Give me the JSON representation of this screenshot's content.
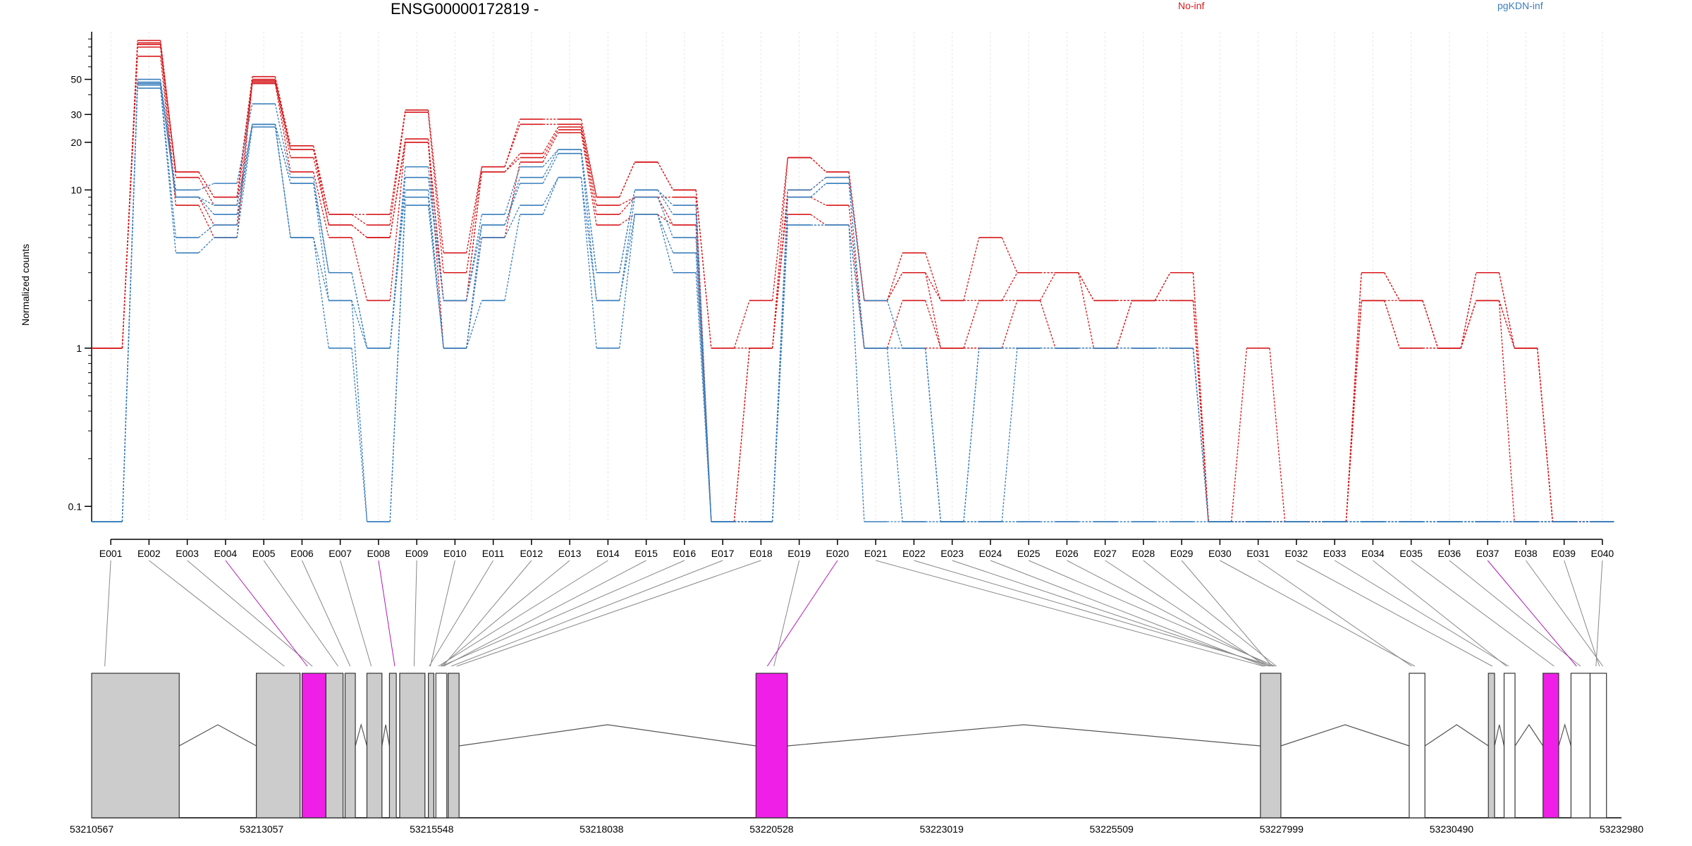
{
  "chart_data": {
    "type": "line",
    "title": "ENSG00000172819 -",
    "ylabel": "Normalized counts",
    "yscale": "log",
    "yticks": [
      0.1,
      1,
      10,
      20,
      30,
      50
    ],
    "ylim": [
      0.08,
      100
    ],
    "legend": [
      "No-inf",
      "pgKDN-inf"
    ],
    "colors": {
      "No-inf": "#d7191c",
      "pgKDN-inf": "#3a7fbd"
    },
    "categories": [
      "E001",
      "E002",
      "E003",
      "E004",
      "E005",
      "E006",
      "E007",
      "E008",
      "E009",
      "E010",
      "E011",
      "E012",
      "E013",
      "E014",
      "E015",
      "E016",
      "E017",
      "E018",
      "E019",
      "E020",
      "E021",
      "E022",
      "E023",
      "E024",
      "E025",
      "E026",
      "E027",
      "E028",
      "E029",
      "E030",
      "E031",
      "E032",
      "E033",
      "E034",
      "E035",
      "E036",
      "E037",
      "E038",
      "E039",
      "E040"
    ],
    "series": [
      {
        "group": "No-inf",
        "values": [
          1,
          88,
          13,
          9,
          52,
          19,
          7,
          7,
          32,
          4,
          14,
          28,
          28,
          9,
          15,
          10,
          1,
          1,
          16,
          13,
          2,
          4,
          2,
          5,
          3,
          3,
          1,
          2,
          3,
          0.08,
          1,
          0.08,
          0.08,
          3,
          2,
          1,
          3,
          1,
          0.08,
          0.08
        ]
      },
      {
        "group": "No-inf",
        "values": [
          1,
          85,
          13,
          9,
          50,
          18,
          7,
          6,
          31,
          3,
          14,
          26,
          26,
          9,
          15,
          10,
          1,
          2,
          16,
          13,
          2,
          3,
          2,
          2,
          3,
          3,
          2,
          2,
          3,
          0.08,
          0.08,
          0.08,
          0.08,
          3,
          2,
          1,
          3,
          1,
          0.08,
          0.08
        ]
      },
      {
        "group": "No-inf",
        "values": [
          1,
          83,
          12,
          8,
          49,
          18,
          6,
          5,
          21,
          2,
          13,
          17,
          25,
          8,
          9,
          9,
          0.08,
          1,
          10,
          12,
          2,
          3,
          1,
          2,
          2,
          3,
          2,
          2,
          2,
          0.08,
          0.08,
          0.08,
          0.08,
          2,
          2,
          1,
          2,
          1,
          0.08,
          0.08
        ]
      },
      {
        "group": "No-inf",
        "values": [
          1,
          80,
          9,
          6,
          48,
          16,
          6,
          5,
          20,
          2,
          13,
          16,
          24,
          7,
          9,
          6,
          0.08,
          1,
          9,
          8,
          1,
          2,
          1,
          1,
          2,
          1,
          1,
          2,
          2,
          0.08,
          0.08,
          0.08,
          0.08,
          2,
          1,
          1,
          2,
          1,
          0.08,
          0.08
        ]
      },
      {
        "group": "No-inf",
        "values": [
          1,
          70,
          8,
          5,
          47,
          13,
          5,
          2,
          20,
          1,
          5,
          15,
          23,
          6,
          7,
          6,
          0.08,
          0.08,
          7,
          6,
          1,
          1,
          1,
          1,
          1,
          1,
          1,
          1,
          1,
          0.08,
          0.08,
          0.08,
          0.08,
          2,
          1,
          1,
          2,
          0.08,
          0.08,
          0.08
        ]
      },
      {
        "group": "pgKDN-inf",
        "values": [
          0.08,
          50,
          10,
          11,
          35,
          12,
          3,
          1,
          14,
          2,
          7,
          14,
          18,
          3,
          10,
          8,
          0.08,
          0.08,
          10,
          12,
          2,
          1,
          0.08,
          1,
          1,
          1,
          1,
          1,
          1,
          0.08,
          0.08,
          0.08,
          0.08,
          0.08,
          0.08,
          0.08,
          0.08,
          0.08,
          0.08,
          0.08
        ]
      },
      {
        "group": "pgKDN-inf",
        "values": [
          0.08,
          48,
          9,
          8,
          26,
          11,
          3,
          1,
          12,
          2,
          6,
          12,
          18,
          3,
          10,
          7,
          0.08,
          0.08,
          9,
          11,
          1,
          1,
          0.08,
          1,
          1,
          1,
          1,
          1,
          1,
          0.08,
          0.08,
          0.08,
          0.08,
          0.08,
          0.08,
          0.08,
          0.08,
          0.08,
          0.08,
          0.08
        ]
      },
      {
        "group": "pgKDN-inf",
        "values": [
          0.08,
          47,
          9,
          7,
          26,
          11,
          2,
          1,
          10,
          1,
          6,
          11,
          17,
          2,
          9,
          5,
          0.08,
          0.08,
          9,
          11,
          1,
          1,
          0.08,
          0.08,
          1,
          1,
          1,
          1,
          1,
          0.08,
          0.08,
          0.08,
          0.08,
          0.08,
          0.08,
          0.08,
          0.08,
          0.08,
          0.08,
          0.08
        ]
      },
      {
        "group": "pgKDN-inf",
        "values": [
          0.08,
          46,
          5,
          6,
          26,
          5,
          2,
          0.08,
          9,
          1,
          5,
          8,
          12,
          2,
          7,
          4,
          0.08,
          0.08,
          6,
          6,
          1,
          0.08,
          0.08,
          0.08,
          0.08,
          0.08,
          0.08,
          0.08,
          0.08,
          0.08,
          0.08,
          0.08,
          0.08,
          0.08,
          0.08,
          0.08,
          0.08,
          0.08,
          0.08,
          0.08
        ]
      },
      {
        "group": "pgKDN-inf",
        "values": [
          0.08,
          44,
          4,
          5,
          25,
          5,
          1,
          0.08,
          8,
          1,
          2,
          7,
          12,
          1,
          7,
          3,
          0.08,
          0.08,
          6,
          6,
          0.08,
          0.08,
          0.08,
          0.08,
          0.08,
          0.08,
          0.08,
          0.08,
          0.08,
          0.08,
          0.08,
          0.08,
          0.08,
          0.08,
          0.08,
          0.08,
          0.08,
          0.08,
          0.08,
          0.08
        ]
      }
    ],
    "gene_model": {
      "coordinate_ticks": [
        53210567,
        53213057,
        53215548,
        53218038,
        53220528,
        53223019,
        53225509,
        53227999,
        53230490,
        53232980
      ],
      "coordinate_range": [
        53210567,
        53232980
      ],
      "exons": [
        {
          "start": 53210567,
          "end": 53211850,
          "fill": "gray"
        },
        {
          "start": 53212980,
          "end": 53213620,
          "fill": "gray"
        },
        {
          "start": 53213650,
          "end": 53214000,
          "fill": "magenta"
        },
        {
          "start": 53214000,
          "end": 53214250,
          "fill": "gray"
        },
        {
          "start": 53214280,
          "end": 53214430,
          "fill": "gray"
        },
        {
          "start": 53214600,
          "end": 53214820,
          "fill": "gray"
        },
        {
          "start": 53214930,
          "end": 53215030,
          "fill": "gray"
        },
        {
          "start": 53215080,
          "end": 53215450,
          "fill": "gray"
        },
        {
          "start": 53215500,
          "end": 53215580,
          "fill": "gray"
        },
        {
          "start": 53215610,
          "end": 53215770,
          "fill": "white"
        },
        {
          "start": 53215790,
          "end": 53215950,
          "fill": "gray"
        },
        {
          "start": 53220300,
          "end": 53220760,
          "fill": "magenta"
        },
        {
          "start": 53227690,
          "end": 53227990,
          "fill": "gray"
        },
        {
          "start": 53229870,
          "end": 53230100,
          "fill": "white"
        },
        {
          "start": 53231030,
          "end": 53231120,
          "fill": "gray"
        },
        {
          "start": 53231260,
          "end": 53231420,
          "fill": "white"
        },
        {
          "start": 53231830,
          "end": 53232060,
          "fill": "magenta"
        },
        {
          "start": 53232240,
          "end": 53232520,
          "fill": "white"
        },
        {
          "start": 53232520,
          "end": 53232760,
          "fill": "white"
        }
      ]
    }
  }
}
